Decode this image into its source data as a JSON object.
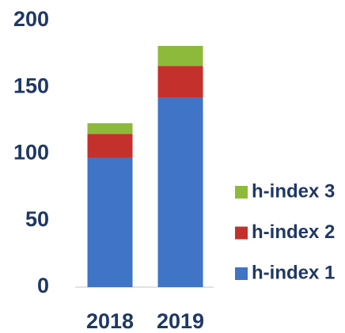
{
  "chart_data": {
    "type": "stacked_bar",
    "categories": [
      "2018",
      "2019"
    ],
    "series": [
      {
        "name": "h-index 1",
        "color": "#3f74c6",
        "values": [
          97,
          142
        ]
      },
      {
        "name": "h-index 2",
        "color": "#c4302c",
        "values": [
          18,
          24
        ]
      },
      {
        "name": "h-index 3",
        "color": "#8dba3b",
        "values": [
          8,
          15
        ]
      }
    ],
    "ylim": [
      0,
      200
    ],
    "yticks": [
      0,
      50,
      100,
      150,
      200
    ],
    "legend": "right"
  }
}
